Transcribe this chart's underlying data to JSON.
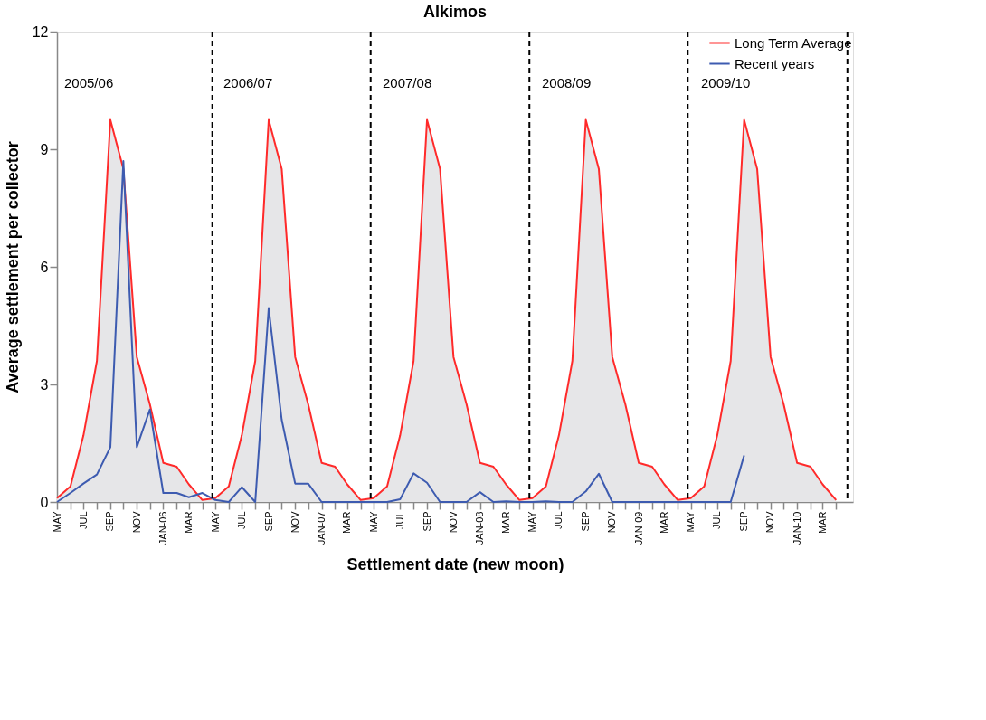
{
  "chart_data": {
    "type": "line",
    "title": "Alkimos",
    "xlabel": "Settlement date (new moon)",
    "ylabel": "Average settlement per collector",
    "x": [
      "2005-05",
      "2005-06",
      "2005-07",
      "2005-08",
      "2005-09",
      "2005-10",
      "2005-11",
      "2005-12",
      "2006-01",
      "2006-02",
      "2006-03",
      "2006-04",
      "2006-05",
      "2006-06",
      "2006-07",
      "2006-08",
      "2006-09",
      "2006-10",
      "2006-11",
      "2006-12",
      "2007-01",
      "2007-02",
      "2007-03",
      "2007-04",
      "2007-05",
      "2007-06",
      "2007-07",
      "2007-08",
      "2007-09",
      "2007-10",
      "2007-11",
      "2007-12",
      "2008-01",
      "2008-02",
      "2008-03",
      "2008-04",
      "2008-05",
      "2008-06",
      "2008-07",
      "2008-08",
      "2008-09",
      "2008-10",
      "2008-11",
      "2008-12",
      "2009-01",
      "2009-02",
      "2009-03",
      "2009-04",
      "2009-05",
      "2009-06",
      "2009-07",
      "2009-08",
      "2009-09",
      "2009-10",
      "2009-11",
      "2009-12",
      "2010-01",
      "2010-02",
      "2010-03",
      "2010-04"
    ],
    "series": [
      {
        "name": "Long Term Average",
        "type": "area",
        "color": "#ff2a2a",
        "values": [
          0.1,
          0.4,
          1.7,
          3.6,
          9.75,
          8.5,
          3.7,
          2.5,
          1.0,
          0.9,
          0.45,
          0.05,
          0.1,
          0.4,
          1.7,
          3.6,
          9.75,
          8.5,
          3.7,
          2.5,
          1.0,
          0.9,
          0.45,
          0.05,
          0.1,
          0.4,
          1.7,
          3.6,
          9.75,
          8.5,
          3.7,
          2.5,
          1.0,
          0.9,
          0.45,
          0.05,
          0.1,
          0.4,
          1.7,
          3.6,
          9.75,
          8.5,
          3.7,
          2.5,
          1.0,
          0.9,
          0.45,
          0.05,
          0.1,
          0.4,
          1.7,
          3.6,
          9.75,
          8.5,
          3.7,
          2.5,
          1.0,
          0.9,
          0.45,
          0.05
        ]
      },
      {
        "name": "Recent years",
        "type": "line",
        "color": "#3d5bb0",
        "values": [
          0,
          0.23,
          0.47,
          0.7,
          1.4,
          8.7,
          1.4,
          2.36,
          0.23,
          0.23,
          0.12,
          0.23,
          0.05,
          0,
          0.38,
          0,
          4.95,
          2.1,
          0.47,
          0.47,
          0,
          0,
          0,
          0,
          0,
          0,
          0.07,
          0.73,
          0.49,
          0,
          0,
          0,
          0.25,
          0,
          0.02,
          0,
          0,
          0.02,
          0,
          0,
          0.27,
          0.72,
          0,
          0,
          0,
          0,
          0,
          0,
          0,
          0,
          0,
          0,
          1.19,
          null,
          null,
          null,
          null,
          null,
          null,
          null
        ]
      }
    ],
    "xlim": [
      "2005-05",
      "2010-05-10"
    ],
    "xticks": [
      {
        "value": "2005-05",
        "label": "MAY"
      },
      {
        "value": "2005-06",
        "label": null
      },
      {
        "value": "2005-07",
        "label": "JUL"
      },
      {
        "value": "2005-08",
        "label": null
      },
      {
        "value": "2005-09",
        "label": "SEP"
      },
      {
        "value": "2005-10",
        "label": null
      },
      {
        "value": "2005-11",
        "label": "NOV"
      },
      {
        "value": "2005-12",
        "label": null
      },
      {
        "value": "2006-01",
        "label": "JAN-06"
      },
      {
        "value": "2006-02",
        "label": null
      },
      {
        "value": "2006-03",
        "label": "MAR"
      },
      {
        "value": "2006-04",
        "label": null
      },
      {
        "value": "2006-05",
        "label": "MAY"
      },
      {
        "value": "2006-06",
        "label": null
      },
      {
        "value": "2006-07",
        "label": "JUL"
      },
      {
        "value": "2006-08",
        "label": null
      },
      {
        "value": "2006-09",
        "label": "SEP"
      },
      {
        "value": "2006-10",
        "label": null
      },
      {
        "value": "2006-11",
        "label": "NOV"
      },
      {
        "value": "2006-12",
        "label": null
      },
      {
        "value": "2007-01",
        "label": "JAN-07"
      },
      {
        "value": "2007-02",
        "label": null
      },
      {
        "value": "2007-03",
        "label": "MAR"
      },
      {
        "value": "2007-04",
        "label": null
      },
      {
        "value": "2007-05",
        "label": "MAY"
      },
      {
        "value": "2007-06",
        "label": null
      },
      {
        "value": "2007-07",
        "label": "JUL"
      },
      {
        "value": "2007-08",
        "label": null
      },
      {
        "value": "2007-09",
        "label": "SEP"
      },
      {
        "value": "2007-10",
        "label": null
      },
      {
        "value": "2007-11",
        "label": "NOV"
      },
      {
        "value": "2007-12",
        "label": null
      },
      {
        "value": "2008-01",
        "label": "JAN-08"
      },
      {
        "value": "2008-02",
        "label": null
      },
      {
        "value": "2008-03",
        "label": "MAR"
      },
      {
        "value": "2008-04",
        "label": null
      },
      {
        "value": "2008-05",
        "label": "MAY"
      },
      {
        "value": "2008-06",
        "label": null
      },
      {
        "value": "2008-07",
        "label": "JUL"
      },
      {
        "value": "2008-08",
        "label": null
      },
      {
        "value": "2008-09",
        "label": "SEP"
      },
      {
        "value": "2008-10",
        "label": null
      },
      {
        "value": "2008-11",
        "label": "NOV"
      },
      {
        "value": "2008-12",
        "label": null
      },
      {
        "value": "2009-01",
        "label": "JAN-09"
      },
      {
        "value": "2009-02",
        "label": null
      },
      {
        "value": "2009-03",
        "label": "MAR"
      },
      {
        "value": "2009-04",
        "label": null
      },
      {
        "value": "2009-05",
        "label": "MAY"
      },
      {
        "value": "2009-06",
        "label": null
      },
      {
        "value": "2009-07",
        "label": "JUL"
      },
      {
        "value": "2009-08",
        "label": null
      },
      {
        "value": "2009-09",
        "label": "SEP"
      },
      {
        "value": "2009-10",
        "label": null
      },
      {
        "value": "2009-11",
        "label": "NOV"
      },
      {
        "value": "2009-12",
        "label": null
      },
      {
        "value": "2010-01",
        "label": "JAN-10"
      },
      {
        "value": "2010-02",
        "label": null
      },
      {
        "value": "2010-03",
        "label": "MAR"
      },
      {
        "value": "2010-04",
        "label": null
      }
    ],
    "ylim": [
      0,
      12
    ],
    "yticks": [
      0,
      3,
      6,
      9,
      12
    ],
    "ref_lines": [
      {
        "axis": "x",
        "value": "2006-04-24",
        "line_style": "dashed",
        "color": "#000000"
      },
      {
        "axis": "x",
        "value": "2007-04-24",
        "line_style": "dashed",
        "color": "#000000"
      },
      {
        "axis": "x",
        "value": "2008-04-24",
        "line_style": "dashed",
        "color": "#000000"
      },
      {
        "axis": "x",
        "value": "2009-04-24",
        "line_style": "dashed",
        "color": "#000000"
      },
      {
        "axis": "x",
        "value": "2010-04-27",
        "line_style": "dashed",
        "color": "#000000"
      }
    ],
    "annotations": [
      "2005/06",
      "2006/07",
      "2007/08",
      "2008/09",
      "2009/10"
    ],
    "grid": false,
    "legend": "top right",
    "marker": "none",
    "line_style": "solid"
  }
}
